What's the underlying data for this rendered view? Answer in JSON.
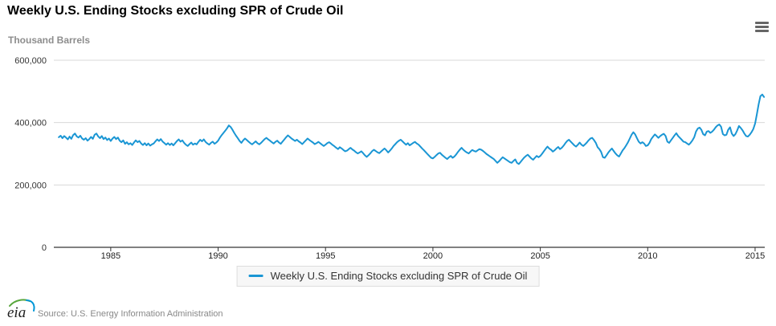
{
  "header": {
    "title": "Weekly U.S. Ending Stocks excluding SPR of Crude Oil",
    "units_label": "Thousand Barrels"
  },
  "menu": {
    "icon": "hamburger-menu-icon"
  },
  "legend": {
    "label": "Weekly U.S. Ending Stocks excluding SPR of Crude Oil"
  },
  "footer": {
    "logo_text": "eia",
    "source": "Source: U.S. Energy Information Administration"
  },
  "colors": {
    "line": "#1a96d4",
    "grid": "#d8d8d8",
    "axis": "#000000",
    "y_tick_label": "#333333",
    "x_tick_label": "#222222",
    "subtitle": "#8d8d8d",
    "legend_bg": "#f7f7f7",
    "legend_border": "#dddddd",
    "source_text": "#888888",
    "menu_icon": "#666666",
    "logo_green": "#58a63c",
    "logo_blue": "#0096d7"
  },
  "chart_data": {
    "type": "line",
    "title": "Weekly U.S. Ending Stocks excluding SPR of Crude Oil",
    "xlabel": "",
    "ylabel": "Thousand Barrels",
    "grid": true,
    "legend_position": "bottom-center",
    "xlim": [
      1982.35,
      2015.45
    ],
    "ylim": [
      0,
      600000
    ],
    "x_ticks": [
      {
        "value": 1985,
        "label": "1985"
      },
      {
        "value": 1990,
        "label": "1990"
      },
      {
        "value": 1995,
        "label": "1995"
      },
      {
        "value": 2000,
        "label": "2000"
      },
      {
        "value": 2005,
        "label": "2005"
      },
      {
        "value": 2010,
        "label": "2010"
      },
      {
        "value": 2015,
        "label": "2015"
      }
    ],
    "y_ticks": [
      {
        "value": 0,
        "label": "0"
      },
      {
        "value": 200000,
        "label": "200,000"
      },
      {
        "value": 400000,
        "label": "400,000"
      },
      {
        "value": 600000,
        "label": "600,000"
      }
    ],
    "series": [
      {
        "name": "Weekly U.S. Ending Stocks excluding SPR of Crude Oil",
        "color": "#1a96d4",
        "start_year_decimal": 1982.583,
        "points_per_year": 12,
        "values": [
          353000,
          358000,
          350000,
          357000,
          352000,
          346000,
          355000,
          348000,
          360000,
          365000,
          356000,
          352000,
          358000,
          349000,
          345000,
          350000,
          342000,
          347000,
          354000,
          348000,
          361000,
          365000,
          356000,
          350000,
          357000,
          347000,
          352000,
          344000,
          349000,
          341000,
          349000,
          354000,
          347000,
          352000,
          342000,
          337000,
          343000,
          332000,
          337000,
          330000,
          334000,
          328000,
          336000,
          343000,
          337000,
          341000,
          333000,
          328000,
          334000,
          327000,
          333000,
          326000,
          330000,
          333000,
          340000,
          346000,
          341000,
          347000,
          339000,
          334000,
          329000,
          334000,
          328000,
          333000,
          327000,
          334000,
          341000,
          346000,
          339000,
          343000,
          335000,
          329000,
          325000,
          331000,
          336000,
          329000,
          333000,
          330000,
          338000,
          345000,
          340000,
          346000,
          338000,
          333000,
          329000,
          335000,
          339000,
          332000,
          336000,
          342000,
          352000,
          360000,
          367000,
          374000,
          382000,
          391000,
          386000,
          377000,
          367000,
          358000,
          350000,
          341000,
          335000,
          343000,
          349000,
          344000,
          339000,
          334000,
          330000,
          335000,
          340000,
          334000,
          330000,
          335000,
          341000,
          347000,
          351000,
          346000,
          342000,
          337000,
          333000,
          338000,
          342000,
          336000,
          332000,
          339000,
          346000,
          353000,
          359000,
          354000,
          349000,
          345000,
          341000,
          345000,
          340000,
          336000,
          331000,
          337000,
          343000,
          349000,
          344000,
          340000,
          336000,
          331000,
          334000,
          338000,
          334000,
          329000,
          325000,
          329000,
          334000,
          337000,
          333000,
          328000,
          324000,
          319000,
          315000,
          321000,
          317000,
          312000,
          308000,
          310000,
          315000,
          319000,
          314000,
          310000,
          305000,
          301000,
          304000,
          308000,
          302000,
          295000,
          290000,
          295000,
          301000,
          308000,
          313000,
          309000,
          305000,
          302000,
          307000,
          312000,
          317000,
          311000,
          304000,
          310000,
          317000,
          325000,
          331000,
          337000,
          342000,
          345000,
          340000,
          334000,
          329000,
          334000,
          327000,
          331000,
          335000,
          338000,
          333000,
          329000,
          323000,
          317000,
          311000,
          305000,
          299000,
          293000,
          287000,
          285000,
          290000,
          296000,
          301000,
          303000,
          297000,
          292000,
          287000,
          283000,
          289000,
          293000,
          287000,
          291000,
          298000,
          306000,
          313000,
          319000,
          313000,
          308000,
          304000,
          301000,
          307000,
          312000,
          309000,
          307000,
          311000,
          315000,
          313000,
          309000,
          304000,
          299000,
          295000,
          291000,
          287000,
          283000,
          277000,
          271000,
          276000,
          283000,
          289000,
          285000,
          281000,
          277000,
          273000,
          271000,
          277000,
          282000,
          271000,
          267000,
          274000,
          281000,
          288000,
          293000,
          297000,
          291000,
          285000,
          281000,
          287000,
          293000,
          289000,
          293000,
          300000,
          308000,
          316000,
          323000,
          317000,
          313000,
          307000,
          311000,
          317000,
          322000,
          315000,
          319000,
          326000,
          334000,
          341000,
          345000,
          339000,
          333000,
          327000,
          323000,
          329000,
          336000,
          329000,
          325000,
          330000,
          336000,
          343000,
          349000,
          351000,
          344000,
          335000,
          321000,
          315000,
          306000,
          289000,
          287000,
          295000,
          304000,
          311000,
          317000,
          309000,
          301000,
          295000,
          291000,
          301000,
          311000,
          318000,
          327000,
          337000,
          349000,
          361000,
          369000,
          362000,
          350000,
          339000,
          333000,
          337000,
          333000,
          325000,
          327000,
          335000,
          347000,
          355000,
          362000,
          357000,
          351000,
          357000,
          361000,
          364000,
          357000,
          339000,
          335000,
          343000,
          351000,
          359000,
          366000,
          357000,
          351000,
          345000,
          339000,
          337000,
          333000,
          329000,
          335000,
          343000,
          353000,
          371000,
          381000,
          384000,
          377000,
          363000,
          359000,
          371000,
          373000,
          367000,
          371000,
          377000,
          385000,
          391000,
          394000,
          387000,
          363000,
          359000,
          361000,
          377000,
          385000,
          365000,
          357000,
          363000,
          375000,
          389000,
          383000,
          375000,
          365000,
          357000,
          355000,
          361000,
          369000,
          379000,
          397000,
          427000,
          459000,
          485000,
          490000,
          482000
        ]
      }
    ]
  }
}
